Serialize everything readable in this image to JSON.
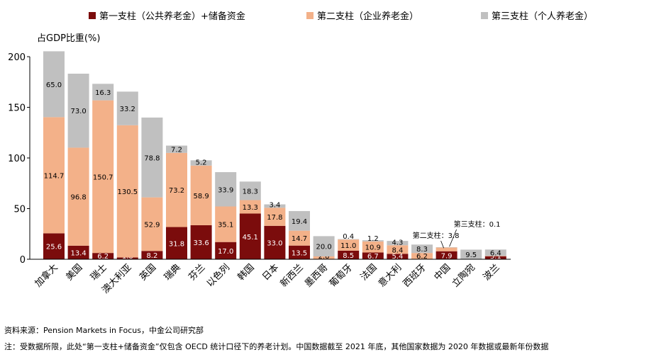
{
  "chart_data": {
    "type": "bar",
    "stacked": true,
    "ylabel": "占GDP比重(%)",
    "ylim": [
      0,
      200
    ],
    "yticks": [
      0,
      50,
      100,
      150,
      200
    ],
    "grid": false,
    "legend_position": "top",
    "categories": [
      "加拿大",
      "美国",
      "瑞士",
      "澳大利亚",
      "英国",
      "瑞典",
      "芬兰",
      "以色列",
      "韩国",
      "日本",
      "新西兰",
      "墨西哥",
      "葡萄牙",
      "法国",
      "意大利",
      "西班牙",
      "中国",
      "立陶宛",
      "波兰"
    ],
    "series": [
      {
        "name": "第一支柱（公共养老金）+储备资金",
        "color": "#7b0c0c",
        "values": [
          25.6,
          13.4,
          6.2,
          1.8,
          8.2,
          31.8,
          33.6,
          17.0,
          45.1,
          33.0,
          13.5,
          0,
          8.5,
          6.7,
          5.4,
          0,
          7.9,
          0.0,
          3.1
        ],
        "labels": [
          "25.6",
          "13.4",
          "6.2",
          "1.8",
          "8.2",
          "31.8",
          "33.6",
          "17.0",
          "45.1",
          "33.0",
          "13.5",
          "",
          "8.5",
          "6.7",
          "5.4",
          "",
          "7.9",
          "0.0",
          "3.1"
        ]
      },
      {
        "name": "第二支柱（企业养老金）",
        "color": "#f3b189",
        "values": [
          114.7,
          96.8,
          150.7,
          130.5,
          52.9,
          73.2,
          58.9,
          35.1,
          13.3,
          17.8,
          14.7,
          2.8,
          11.0,
          10.9,
          8.4,
          6.2,
          3.8,
          0.0,
          0.1
        ],
        "labels": [
          "114.7",
          "96.8",
          "150.7",
          "130.5",
          "52.9",
          "73.2",
          "58.9",
          "35.1",
          "13.3",
          "17.8",
          "14.7",
          "2.8",
          "11.0",
          "10.9",
          "8.4",
          "6.2",
          "",
          "0.0",
          "0.1"
        ]
      },
      {
        "name": "第三支柱（个人养老金）",
        "color": "#c0c0c0",
        "values": [
          65.0,
          73.0,
          16.3,
          33.2,
          78.8,
          7.2,
          5.2,
          33.9,
          18.3,
          3.4,
          19.4,
          20.0,
          0.4,
          1.2,
          4.3,
          8.3,
          0.1,
          9.5,
          6.4
        ],
        "labels": [
          "65.0",
          "73.0",
          "16.3",
          "33.2",
          "78.8",
          "7.2",
          "5.2",
          "33.9",
          "18.3",
          "3.4",
          "19.4",
          "20.0",
          "0.4",
          "1.2",
          "4.3",
          "8.3",
          "",
          "9.5",
          "6.4"
        ]
      }
    ],
    "annotations": [
      {
        "text": "第三支柱：0.1",
        "category": "中国"
      },
      {
        "text": "第二支柱：3.8",
        "category": "中国"
      }
    ]
  },
  "footer": {
    "source": "资料来源：Pension Markets in Focus，中金公司研究部",
    "note": "注：受数据所限，此处“第一支柱+储备资金”仅包含 OECD 统计口径下的养老计划。中国数据截至 2021 年底，其他国家数据为 2020 年数据或最新年份数据"
  }
}
